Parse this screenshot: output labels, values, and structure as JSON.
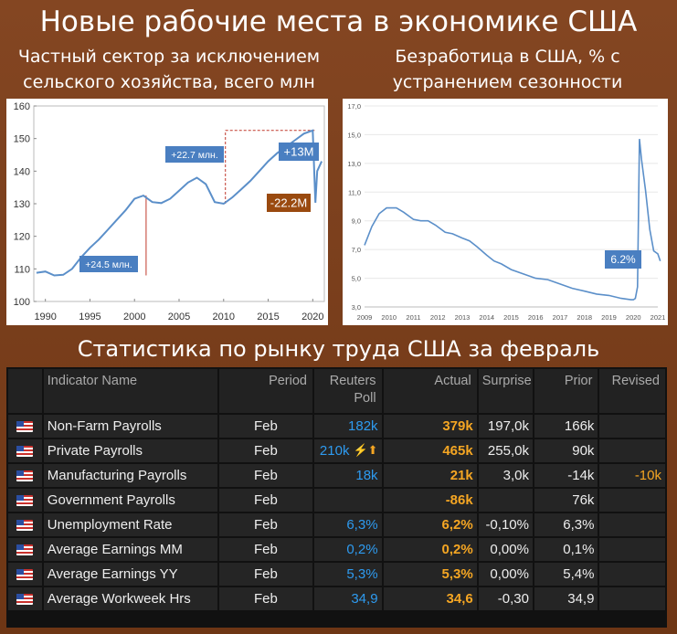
{
  "header": {
    "title": "Новые рабочие места в экономике США",
    "left_subtitle_1": "Частный сектор за исключением",
    "left_subtitle_2": "сельского хозяйства, всего млн",
    "right_subtitle_1": "Безработица в США, % с",
    "right_subtitle_2": "устранением сезонности",
    "section_title": "Статистика по рынку труда США за февраль"
  },
  "colors": {
    "line": "#5b8fc9",
    "callout_blue": "#4a7fc1",
    "callout_brown": "#9a4a0f",
    "guide_red": "#c0392b"
  },
  "chart_data": [
    {
      "type": "line",
      "x": [
        1989,
        1990,
        1991,
        1992,
        1993,
        1994,
        1995,
        1996,
        1997,
        1998,
        1999,
        2000,
        2001,
        2002,
        2003,
        2004,
        2005,
        2006,
        2007,
        2008,
        2009,
        2010,
        2011,
        2012,
        2013,
        2014,
        2015,
        2016,
        2017,
        2018,
        2019,
        2020,
        2020.3,
        2020.5,
        2021
      ],
      "values": [
        108.8,
        109.2,
        108.0,
        108.2,
        110.0,
        113.5,
        116.5,
        119.0,
        122.0,
        125.0,
        128.0,
        131.5,
        132.5,
        130.5,
        130.2,
        131.5,
        134.0,
        136.5,
        138.0,
        136.0,
        130.5,
        130.0,
        132.0,
        134.5,
        137.0,
        140.0,
        143.0,
        145.5,
        147.5,
        149.5,
        151.5,
        152.5,
        130.3,
        140.0,
        143.0
      ],
      "xticks": [
        "1990",
        "1995",
        "2000",
        "2005",
        "2010",
        "2015",
        "2020"
      ],
      "yticks": [
        "100",
        "110",
        "120",
        "130",
        "140",
        "150",
        "160"
      ],
      "ylim": [
        100,
        160
      ],
      "xlim": [
        1988.7,
        2021.3
      ],
      "annotations": [
        "+24.5 млн.",
        "+22.7 млн.",
        "+13M",
        "-22.2M"
      ]
    },
    {
      "type": "line",
      "x": [
        2009,
        2009.3,
        2009.6,
        2009.9,
        2010.3,
        2010.6,
        2011,
        2011.3,
        2011.6,
        2011.9,
        2012.3,
        2012.6,
        2013,
        2013.3,
        2013.6,
        2014,
        2014.3,
        2014.6,
        2015,
        2015.5,
        2016,
        2016.5,
        2017,
        2017.5,
        2018,
        2018.5,
        2019,
        2019.5,
        2019.9,
        2020,
        2020.08,
        2020.17,
        2020.25,
        2020.33,
        2020.5,
        2020.67,
        2020.83,
        2021,
        2021.1
      ],
      "values": [
        7.3,
        8.6,
        9.5,
        9.9,
        9.9,
        9.6,
        9.1,
        9.0,
        9.0,
        8.7,
        8.2,
        8.1,
        7.8,
        7.6,
        7.2,
        6.6,
        6.2,
        6.0,
        5.6,
        5.3,
        5.0,
        4.9,
        4.6,
        4.3,
        4.1,
        3.9,
        3.8,
        3.6,
        3.5,
        3.5,
        3.6,
        4.4,
        14.7,
        13.3,
        11.1,
        8.4,
        6.9,
        6.7,
        6.2
      ],
      "xticks": [
        "2009",
        "2010",
        "2011",
        "2012",
        "2013",
        "2014",
        "2015",
        "2016",
        "2017",
        "2018",
        "2019",
        "2020",
        "2021"
      ],
      "yticks": [
        "3,0",
        "5,0",
        "7,0",
        "9,0",
        "11,0",
        "13,0",
        "15,0",
        "17,0"
      ],
      "ylim": [
        3,
        17
      ],
      "xlim": [
        2009,
        2021
      ],
      "annotations": [
        "6.2%"
      ]
    },
    {
      "type": "table",
      "columns": [
        "",
        "Indicator Name",
        "Period",
        "Reuters Poll",
        "Actual",
        "Surprise",
        "Prior",
        "Revised"
      ],
      "rows": [
        {
          "name": "Non-Farm Payrolls",
          "period": "Feb",
          "poll": "182k",
          "actual": "379k",
          "surprise": "197,0k",
          "prior": "166k",
          "revised": "",
          "icon": ""
        },
        {
          "name": "Private Payrolls",
          "period": "Feb",
          "poll": "210k",
          "actual": "465k",
          "surprise": "255,0k",
          "prior": "90k",
          "revised": "",
          "icon": "⚡⬆"
        },
        {
          "name": "Manufacturing Payrolls",
          "period": "Feb",
          "poll": "18k",
          "actual": "21k",
          "surprise": "3,0k",
          "prior": "-14k",
          "revised": "-10k",
          "icon": ""
        },
        {
          "name": "Government Payrolls",
          "period": "Feb",
          "poll": "",
          "actual": "-86k",
          "surprise": "",
          "prior": "76k",
          "revised": "",
          "icon": ""
        },
        {
          "name": "Unemployment Rate",
          "period": "Feb",
          "poll": "6,3%",
          "actual": "6,2%",
          "surprise": "-0,10%",
          "prior": "6,3%",
          "revised": "",
          "icon": ""
        },
        {
          "name": "Average Earnings MM",
          "period": "Feb",
          "poll": "0,2%",
          "actual": "0,2%",
          "surprise": "0,00%",
          "prior": "0,1%",
          "revised": "",
          "icon": ""
        },
        {
          "name": "Average Earnings YY",
          "period": "Feb",
          "poll": "5,3%",
          "actual": "5,3%",
          "surprise": "0,00%",
          "prior": "5,4%",
          "revised": "",
          "icon": ""
        },
        {
          "name": "Average Workweek Hrs",
          "period": "Feb",
          "poll": "34,9",
          "actual": "34,6",
          "surprise": "-0,30",
          "prior": "34,9",
          "revised": "",
          "icon": ""
        }
      ]
    }
  ]
}
